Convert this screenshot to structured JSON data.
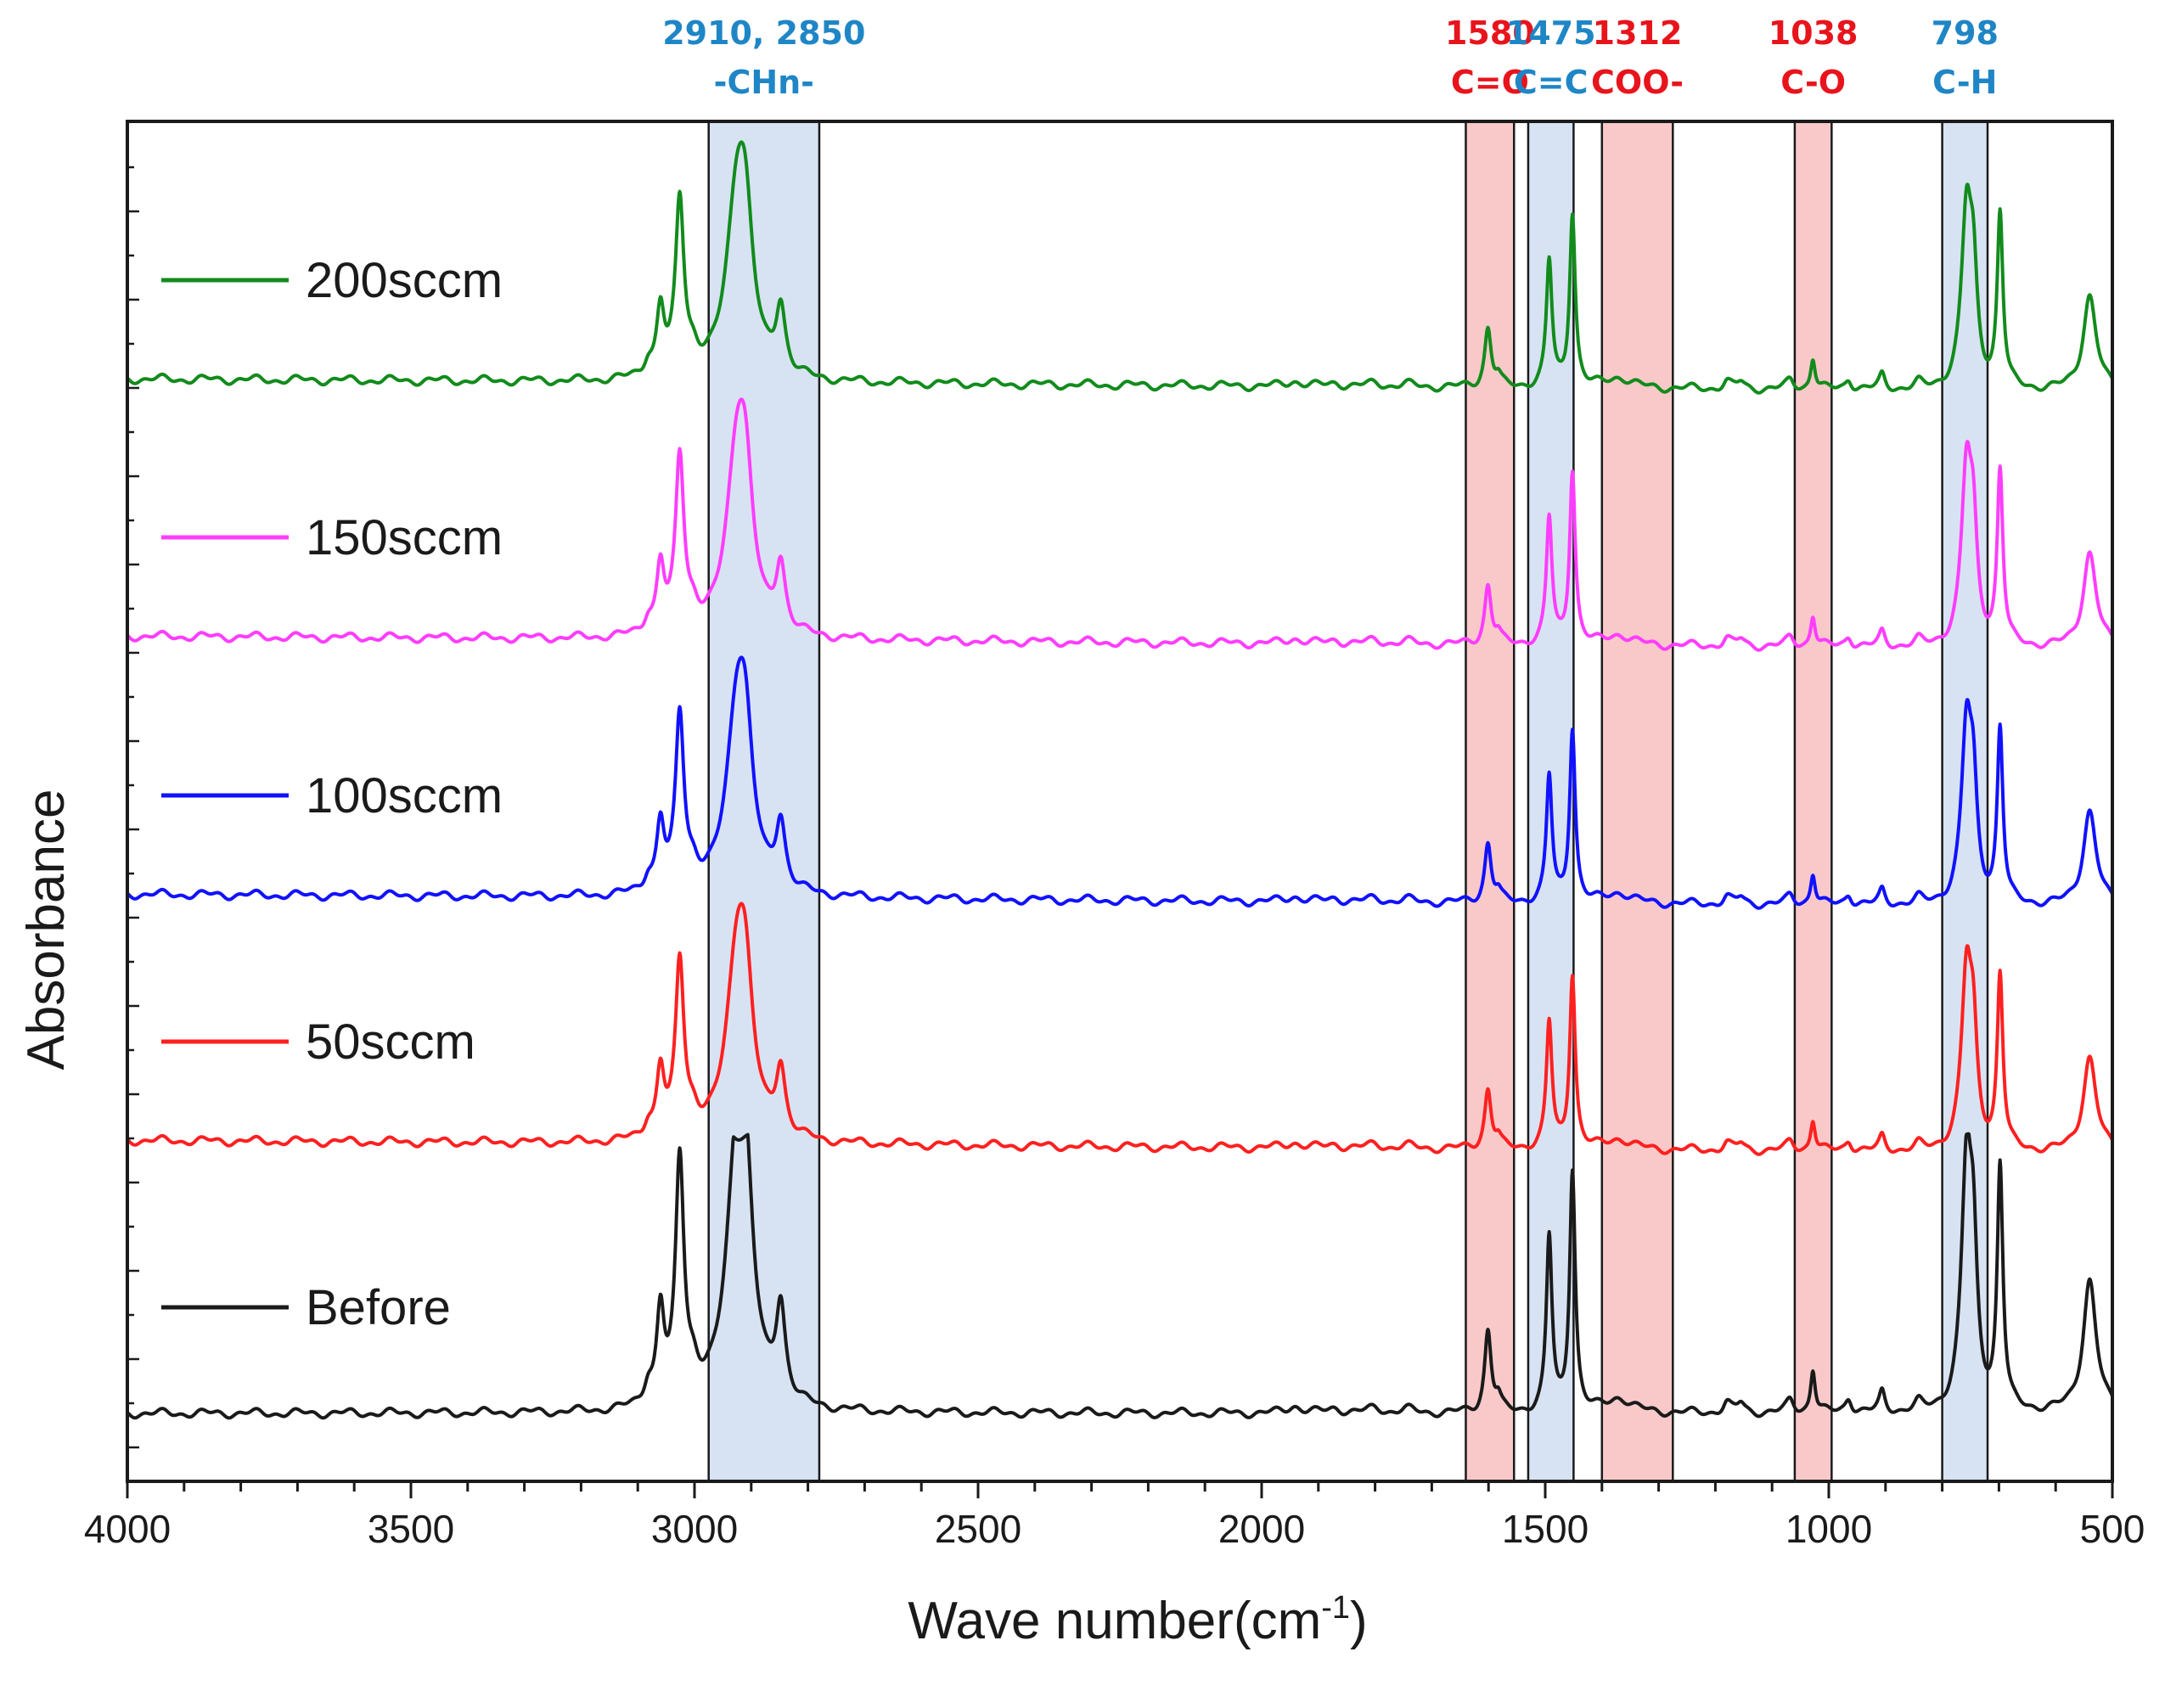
{
  "chart_data": {
    "type": "line",
    "title": "",
    "xlabel": "Wave number(cm",
    "xlabel_sup": "-1",
    "xlabel_close": ")",
    "ylabel": "Absorbance",
    "xlim": [
      4000,
      500
    ],
    "x_ticks": [
      4000,
      3500,
      3000,
      2500,
      2000,
      1500,
      1000,
      500
    ],
    "y_tick_labels": false,
    "grid": false,
    "legend_placement": "left, beside each trace",
    "bands": [
      {
        "name": "band-ch",
        "from": 2975,
        "to": 2780,
        "fill": "#d7e3f3",
        "text_color": "#1f86c6",
        "lines": [
          "2910, 2850",
          "-CHn-"
        ]
      },
      {
        "name": "band-co-1580",
        "from": 1640,
        "to": 1555,
        "fill": "#f9c9c9",
        "text_color": "#e8141c",
        "lines": [
          "1580",
          "C=O"
        ]
      },
      {
        "name": "band-cc",
        "from": 1530,
        "to": 1450,
        "fill": "#d7e3f3",
        "text_color": "#1f86c6",
        "lines": [
          "1475",
          "C=C"
        ]
      },
      {
        "name": "band-coo",
        "from": 1400,
        "to": 1275,
        "fill": "#f9c9c9",
        "text_color": "#e8141c",
        "lines": [
          "1312",
          "COO-"
        ]
      },
      {
        "name": "band-c-o",
        "from": 1060,
        "to": 995,
        "fill": "#f9c9c9",
        "text_color": "#e8141c",
        "lines": [
          "1038",
          "C-O"
        ]
      },
      {
        "name": "band-ch-798",
        "from": 800,
        "to": 720,
        "fill": "#d7e3f3",
        "text_color": "#1f86c6",
        "lines": [
          "798",
          "C-H"
        ]
      }
    ],
    "peaks": [
      {
        "x": 3082,
        "h": 0.08,
        "w": 9
      },
      {
        "x": 3060,
        "h": 0.38,
        "w": 8
      },
      {
        "x": 3026,
        "h": 1.0,
        "w": 9
      },
      {
        "x": 3002,
        "h": 0.1,
        "w": 12
      },
      {
        "x": 2925,
        "h": 1.0,
        "w": 22
      },
      {
        "x": 2910,
        "h": 0.6,
        "w": 16
      },
      {
        "x": 2848,
        "h": 0.38,
        "w": 10
      },
      {
        "x": 1942,
        "h": 0.03,
        "w": 15
      },
      {
        "x": 1870,
        "h": 0.02,
        "w": 15
      },
      {
        "x": 1800,
        "h": 0.02,
        "w": 15
      },
      {
        "x": 1745,
        "h": 0.015,
        "w": 15
      },
      {
        "x": 1601,
        "h": 0.34,
        "w": 7
      },
      {
        "x": 1583,
        "h": 0.05,
        "w": 6
      },
      {
        "x": 1493,
        "h": 0.72,
        "w": 6
      },
      {
        "x": 1452,
        "h": 1.0,
        "w": 6
      },
      {
        "x": 1370,
        "h": 0.06,
        "w": 25
      },
      {
        "x": 1180,
        "h": 0.04,
        "w": 8
      },
      {
        "x": 1155,
        "h": 0.04,
        "w": 8
      },
      {
        "x": 1068,
        "h": 0.05,
        "w": 8
      },
      {
        "x": 1028,
        "h": 0.18,
        "w": 5
      },
      {
        "x": 965,
        "h": 0.06,
        "w": 7
      },
      {
        "x": 906,
        "h": 0.08,
        "w": 6
      },
      {
        "x": 842,
        "h": 0.03,
        "w": 8
      },
      {
        "x": 757,
        "h": 1.0,
        "w": 11
      },
      {
        "x": 745,
        "h": 0.5,
        "w": 8
      },
      {
        "x": 698,
        "h": 1.0,
        "w": 6
      },
      {
        "x": 540,
        "h": 0.55,
        "w": 14
      }
    ],
    "series": [
      {
        "name": "Before",
        "color": "#1a1a1a",
        "offset": 1.0,
        "scale": 1.0,
        "baseline_slope": 0.0,
        "clip": 1.15
      },
      {
        "name": "50sccm",
        "color": "#ff2020",
        "offset": 0.0,
        "scale": 0.72,
        "baseline_slope": 0.015,
        "clip": 1.2
      },
      {
        "name": "100sccm",
        "color": "#1111ff",
        "offset": 0.0,
        "scale": 0.72,
        "baseline_slope": 0.015,
        "clip": 1.2
      },
      {
        "name": "150sccm",
        "color": "#ff3dff",
        "offset": 0.0,
        "scale": 0.72,
        "baseline_slope": 0.015,
        "clip": 1.2
      },
      {
        "name": "200sccm",
        "color": "#128b1c",
        "offset": 0.0,
        "scale": 0.72,
        "baseline_slope": 0.015,
        "clip": 1.2
      }
    ]
  }
}
